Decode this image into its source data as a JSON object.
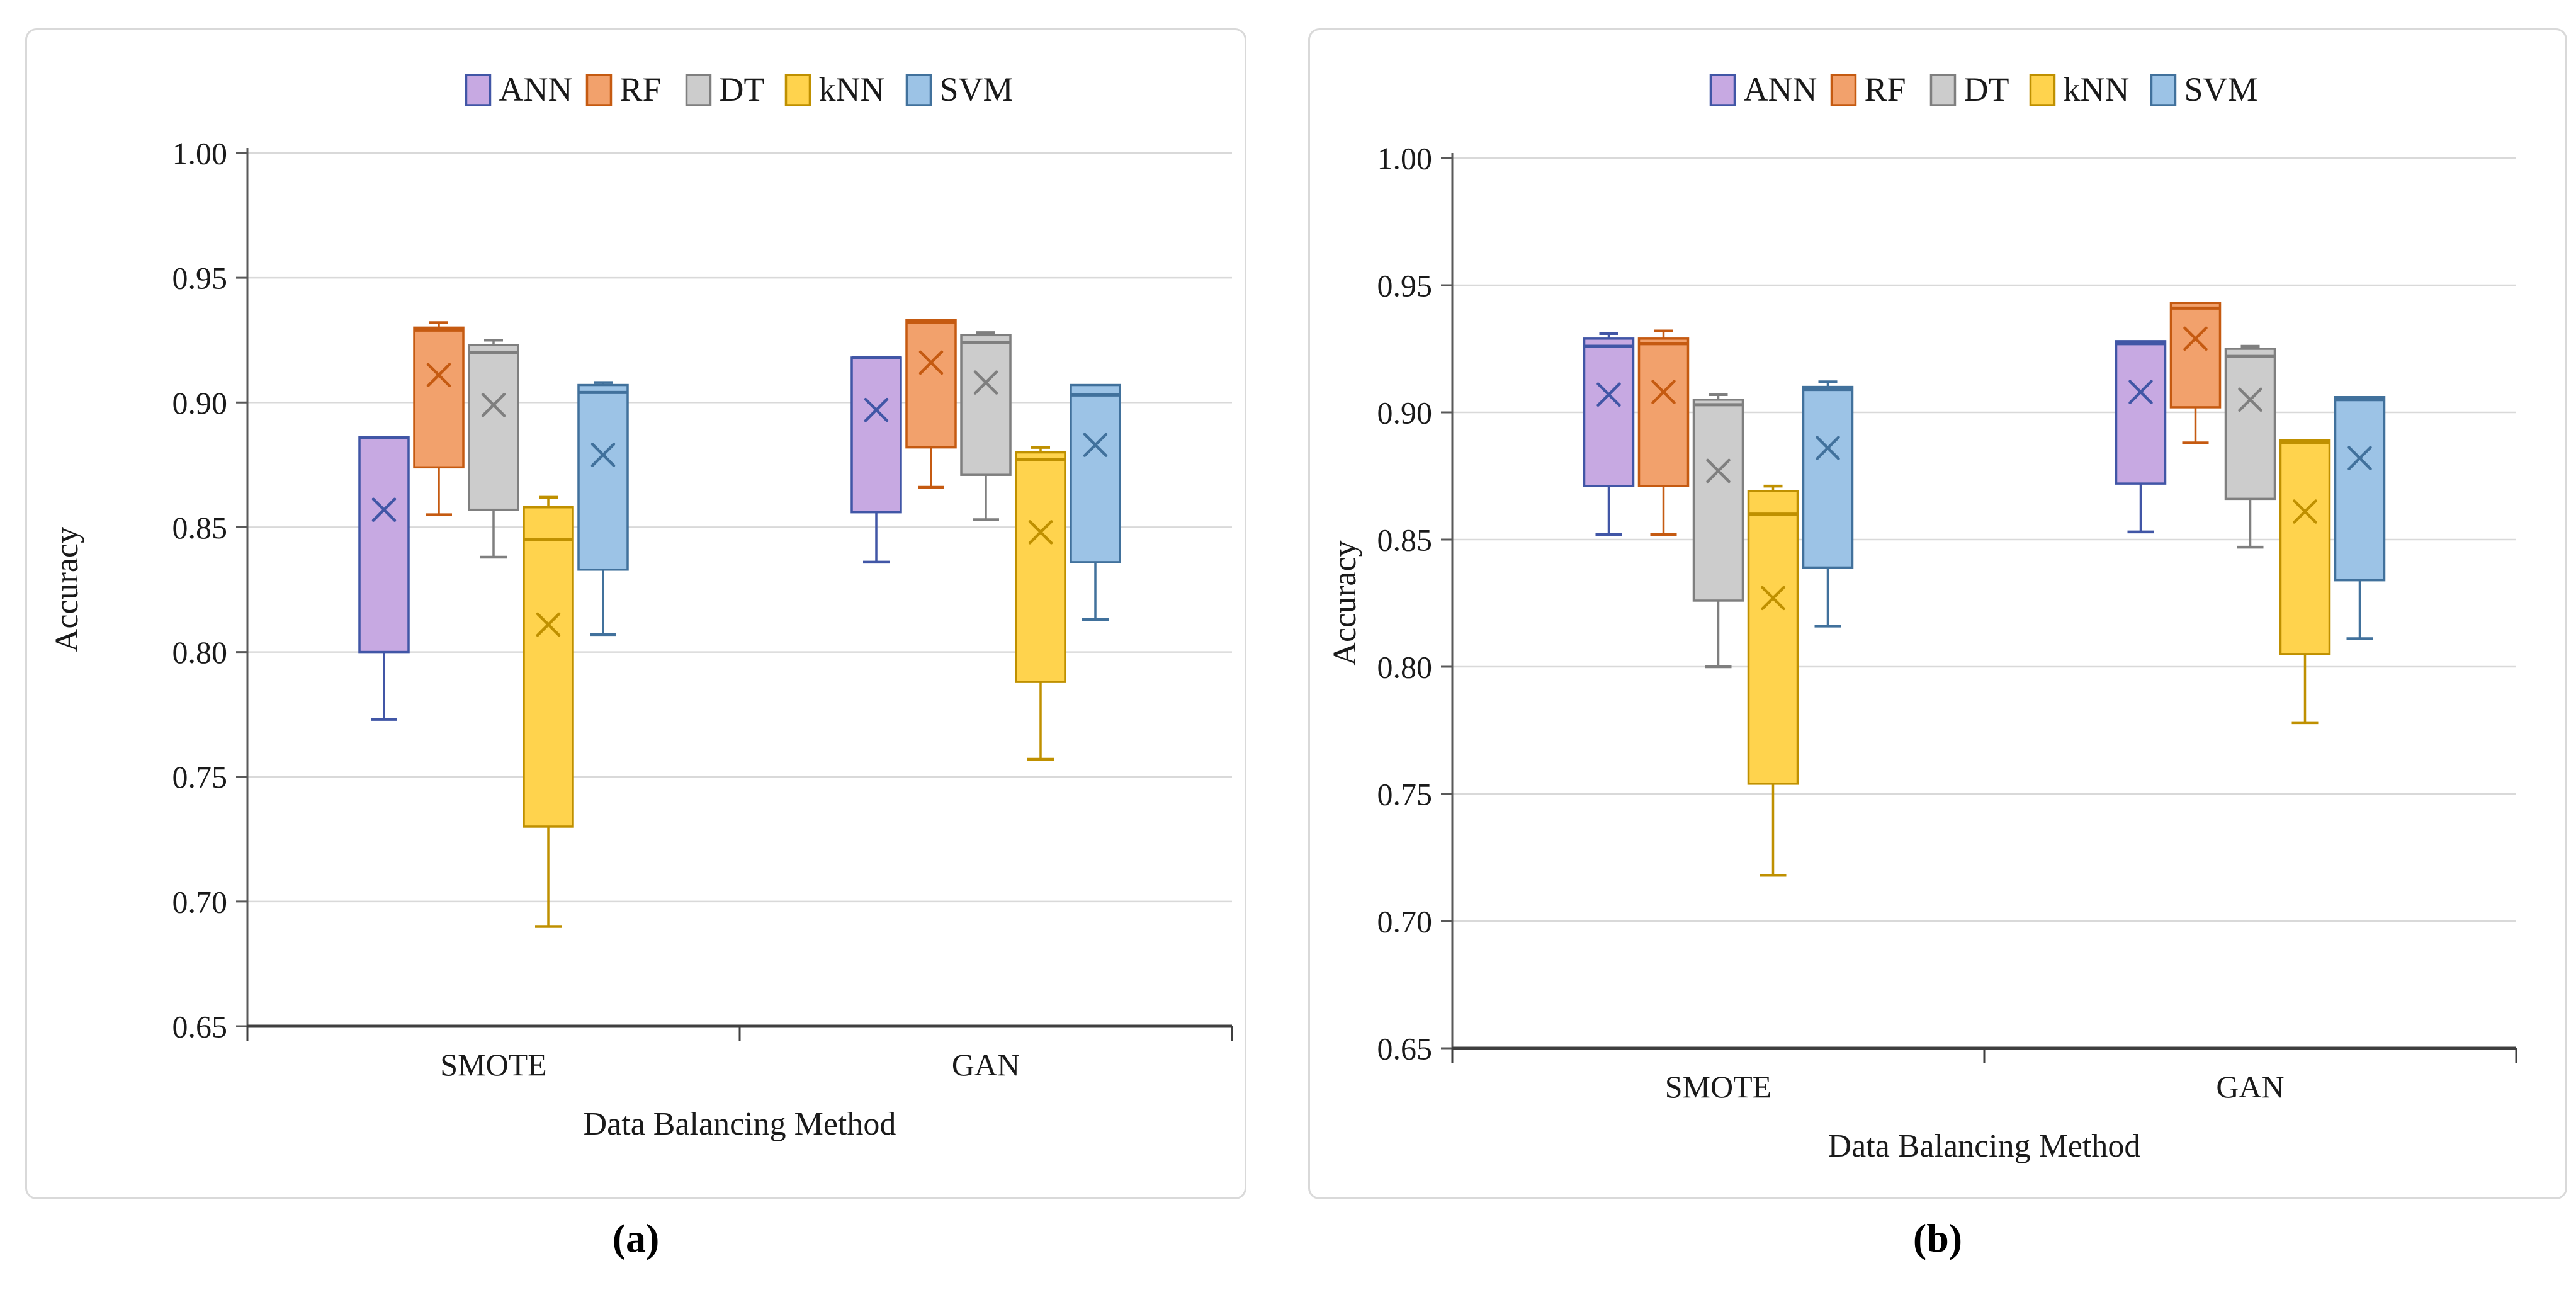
{
  "figure": {
    "background": "#ffffff"
  },
  "style": {
    "grid_color": "#d9d9d9",
    "y_axis_color": "#595959",
    "x_axis_color": "#3f3f3f",
    "text_color": "#1a1a1a",
    "panel_border_color": "#d9d9d9"
  },
  "series_styles": [
    {
      "name": "ANN",
      "fill": "#c7a9e2",
      "stroke": "#4156a6"
    },
    {
      "name": "RF",
      "fill": "#f2a16c",
      "stroke": "#c55a11"
    },
    {
      "name": "DT",
      "fill": "#cccccc",
      "stroke": "#7f7f7f"
    },
    {
      "name": "kNN",
      "fill": "#ffd34d",
      "stroke": "#bf9000"
    },
    {
      "name": "SVM",
      "fill": "#9cc3e6",
      "stroke": "#41719c"
    }
  ],
  "captions": {
    "a": "(a)",
    "b": "(b)"
  },
  "chart_data": [
    {
      "type": "box",
      "caption": "(a)",
      "title": "",
      "ylabel": "Accuracy",
      "xlabel": "Data Balancing Method",
      "ylim": [
        0.65,
        1.0
      ],
      "ytick_step": 0.05,
      "grid": true,
      "legend_position": "top",
      "categories": [
        "SMOTE",
        "GAN"
      ],
      "series": [
        {
          "name": "ANN",
          "boxes": [
            {
              "min": 0.773,
              "q1": 0.8,
              "median": 0.886,
              "q3": 0.886,
              "max": 0.886,
              "mean": 0.857
            },
            {
              "min": 0.836,
              "q1": 0.856,
              "median": 0.918,
              "q3": 0.918,
              "max": 0.918,
              "mean": 0.897
            }
          ]
        },
        {
          "name": "RF",
          "boxes": [
            {
              "min": 0.855,
              "q1": 0.874,
              "median": 0.929,
              "q3": 0.93,
              "max": 0.932,
              "mean": 0.911
            },
            {
              "min": 0.866,
              "q1": 0.882,
              "median": 0.932,
              "q3": 0.933,
              "max": 0.933,
              "mean": 0.916
            }
          ]
        },
        {
          "name": "DT",
          "boxes": [
            {
              "min": 0.838,
              "q1": 0.857,
              "median": 0.92,
              "q3": 0.923,
              "max": 0.925,
              "mean": 0.899
            },
            {
              "min": 0.853,
              "q1": 0.871,
              "median": 0.924,
              "q3": 0.927,
              "max": 0.928,
              "mean": 0.908
            }
          ]
        },
        {
          "name": "kNN",
          "boxes": [
            {
              "min": 0.69,
              "q1": 0.73,
              "median": 0.845,
              "q3": 0.858,
              "max": 0.862,
              "mean": 0.811
            },
            {
              "min": 0.757,
              "q1": 0.788,
              "median": 0.877,
              "q3": 0.88,
              "max": 0.882,
              "mean": 0.848
            }
          ]
        },
        {
          "name": "SVM",
          "boxes": [
            {
              "min": 0.807,
              "q1": 0.833,
              "median": 0.904,
              "q3": 0.907,
              "max": 0.908,
              "mean": 0.879
            },
            {
              "min": 0.813,
              "q1": 0.836,
              "median": 0.903,
              "q3": 0.907,
              "max": 0.907,
              "mean": 0.883
            }
          ]
        }
      ]
    },
    {
      "type": "box",
      "caption": "(b)",
      "title": "",
      "ylabel": "Accuracy",
      "xlabel": "Data Balancing Method",
      "ylim": [
        0.65,
        1.0
      ],
      "ytick_step": 0.05,
      "grid": true,
      "legend_position": "top",
      "categories": [
        "SMOTE",
        "GAN"
      ],
      "series": [
        {
          "name": "ANN",
          "boxes": [
            {
              "min": 0.852,
              "q1": 0.871,
              "median": 0.926,
              "q3": 0.929,
              "max": 0.931,
              "mean": 0.907
            },
            {
              "min": 0.853,
              "q1": 0.872,
              "median": 0.927,
              "q3": 0.928,
              "max": 0.928,
              "mean": 0.908
            }
          ]
        },
        {
          "name": "RF",
          "boxes": [
            {
              "min": 0.852,
              "q1": 0.871,
              "median": 0.927,
              "q3": 0.929,
              "max": 0.932,
              "mean": 0.908
            },
            {
              "min": 0.888,
              "q1": 0.902,
              "median": 0.941,
              "q3": 0.943,
              "max": 0.943,
              "mean": 0.929
            }
          ]
        },
        {
          "name": "DT",
          "boxes": [
            {
              "min": 0.8,
              "q1": 0.826,
              "median": 0.903,
              "q3": 0.905,
              "max": 0.907,
              "mean": 0.877
            },
            {
              "min": 0.847,
              "q1": 0.866,
              "median": 0.922,
              "q3": 0.925,
              "max": 0.926,
              "mean": 0.905
            }
          ]
        },
        {
          "name": "kNN",
          "boxes": [
            {
              "min": 0.718,
              "q1": 0.754,
              "median": 0.86,
              "q3": 0.869,
              "max": 0.871,
              "mean": 0.827
            },
            {
              "min": 0.778,
              "q1": 0.805,
              "median": 0.888,
              "q3": 0.889,
              "max": 0.889,
              "mean": 0.861
            }
          ]
        },
        {
          "name": "SVM",
          "boxes": [
            {
              "min": 0.816,
              "q1": 0.839,
              "median": 0.909,
              "q3": 0.91,
              "max": 0.912,
              "mean": 0.886
            },
            {
              "min": 0.811,
              "q1": 0.834,
              "median": 0.905,
              "q3": 0.906,
              "max": 0.906,
              "mean": 0.882
            }
          ]
        }
      ]
    }
  ]
}
